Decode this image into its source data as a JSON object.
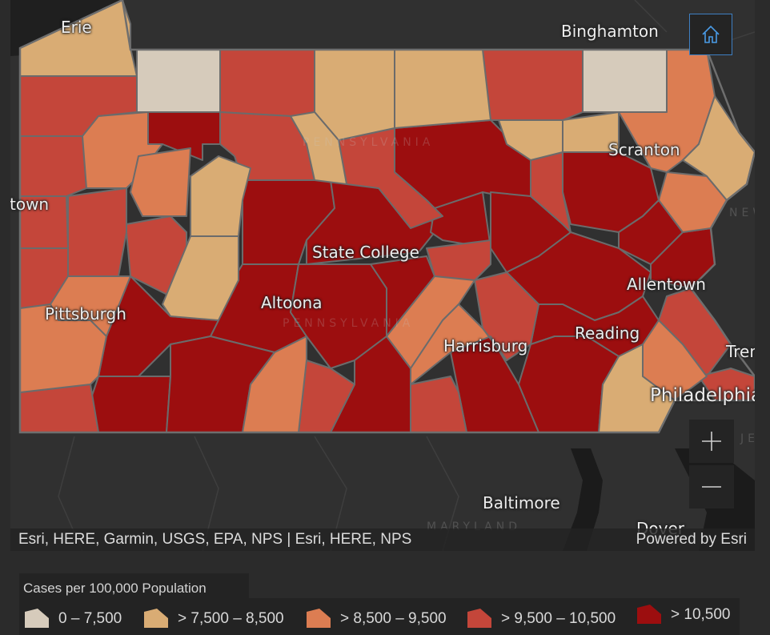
{
  "map": {
    "cities": [
      "Erie",
      "Binghamton",
      "Scranton",
      "Youngstown",
      "State College",
      "Allentown",
      "Pittsburgh",
      "Altoona",
      "Reading",
      "Harrisburg",
      "Trenton",
      "Philadelphia",
      "Baltimore",
      "Dover"
    ],
    "city_display": [
      "Erie",
      "Binghamton",
      "Scranton",
      "town",
      "State College",
      "Allentown",
      "Pittsburgh",
      "Altoona",
      "Reading",
      "Harrisburg",
      "Tren",
      "Philadelphia",
      "Baltimore",
      "Dover"
    ],
    "faint_labels": [
      "PENNSYLVANIA",
      "PENNSYLVANIA",
      "MARYLAND",
      "NEW",
      "JE"
    ],
    "colors": {
      "background": "#303030",
      "water": "#1a1a1a",
      "class_0": "#d6cbbb",
      "class_1": "#d9ac74",
      "class_2": "#dc7d52",
      "class_3": "#c4463a",
      "class_4": "#9c0e0f"
    }
  },
  "controls": {
    "home_icon": "home-icon",
    "zoom_in_icon": "plus-icon",
    "zoom_out_icon": "minus-icon"
  },
  "attribution": {
    "text": "Esri, HERE, Garmin, USGS, EPA, NPS | Esri, HERE, NPS",
    "powered_by": "Powered by Esri"
  },
  "legend": {
    "title": "Cases per 100,000 Population",
    "items": [
      {
        "label": "0 – 7,500",
        "color": "#d6cbbb"
      },
      {
        "label": "> 7,500 – 8,500",
        "color": "#d9ac74"
      },
      {
        "label": "> 8,500 – 9,500",
        "color": "#dc7d52"
      },
      {
        "label": "> 9,500 – 10,500",
        "color": "#c4463a"
      },
      {
        "label": "> 10,500",
        "color": "#9c0e0f"
      }
    ]
  }
}
